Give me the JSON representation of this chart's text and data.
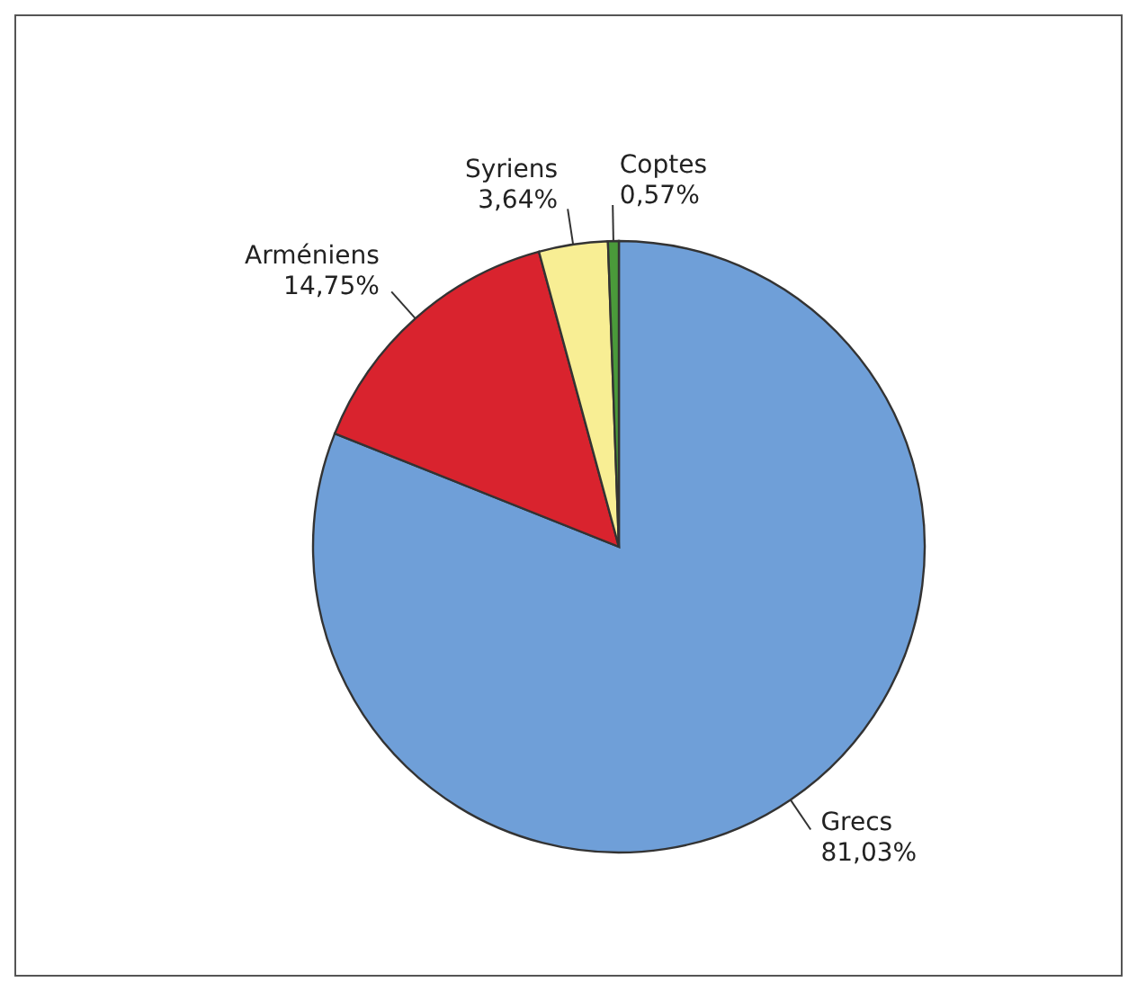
{
  "chart_data": {
    "type": "pie",
    "categories": [
      "Grecs",
      "Arméniens",
      "Syriens",
      "Coptes"
    ],
    "values": [
      81.03,
      14.75,
      3.64,
      0.57
    ],
    "colors": [
      "#6f9fd8",
      "#d9232e",
      "#f8ee94",
      "#4a9a3a"
    ],
    "value_labels": [
      "81,03%",
      "14,75%",
      "3,64%",
      "0,57%"
    ]
  }
}
